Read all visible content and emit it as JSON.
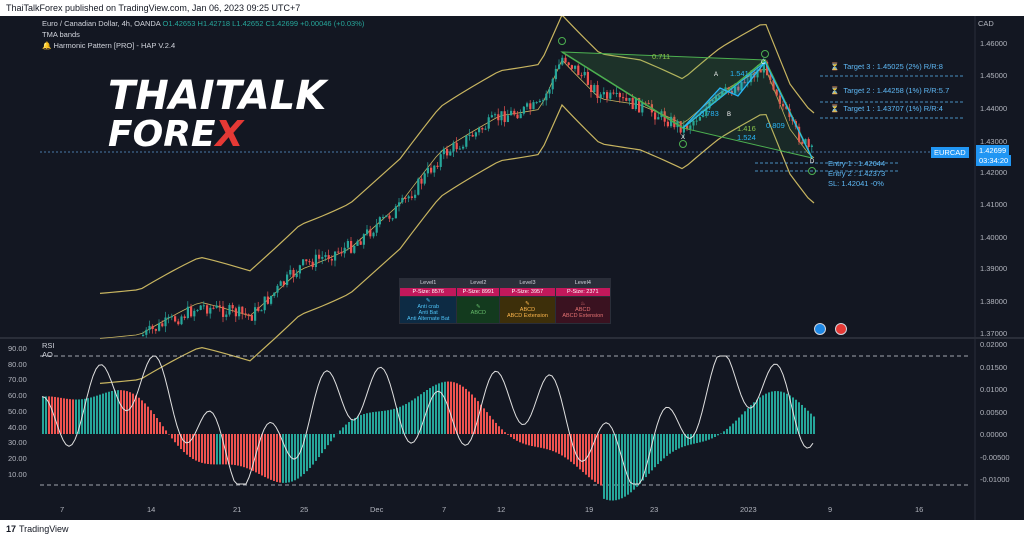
{
  "publish_line": "ThaiTalkForex published on TradingView.com, Jan 06, 2023 09:25 UTC+7",
  "legend": {
    "symbol": "Euro / Canadian Dollar, 4h, OANDA",
    "ohlc": "O1.42653 H1.42718 L1.42652 C1.42699 +0.00046 (+0.03%)",
    "indicator1": "TMA bands",
    "indicator2": "Harmonic Pattern [PRO] - HAP V.2.4"
  },
  "brand": {
    "line1": "THAITALK",
    "line2a": "FORE",
    "line2b": "X"
  },
  "currency_label": "CAD",
  "price_axis": [
    "1.46000",
    "1.45000",
    "1.44000",
    "1.43000",
    "1.42000",
    "1.41000",
    "1.40000",
    "1.39000",
    "1.38000",
    "1.37000"
  ],
  "symbol_tag": "EURCAD",
  "last_price": "1.42699",
  "countdown": "03:34:20",
  "targets": [
    {
      "label": "Target 3 : 1.45025 (2%) R/R:8"
    },
    {
      "label": "Target 2 : 1.44258 (1%) R/R:5.7"
    },
    {
      "label": "Target 1 : 1.43707 (1%) R/R:4"
    }
  ],
  "entries": [
    {
      "label": "Entry 1 : 1.42644"
    },
    {
      "label": "Entry 2 : 1.42373"
    },
    {
      "label": "SL: 1.42041 -0%"
    }
  ],
  "pattern_labels": {
    "ratio_top": "0.711",
    "ratio_mid": "1.416",
    "ratio_mid2": "1.524",
    "ratio_c": "0.809",
    "ratio_b": "1.541",
    "ratio_a": "0.783",
    "x": "X",
    "a": "A",
    "b": "B",
    "c": "C",
    "d": "D"
  },
  "level_table": {
    "headers": [
      "Level1",
      "Level2",
      "Level3",
      "Level4"
    ],
    "psize": [
      "P-Size: 8576",
      "P-Size: 8991",
      "P-Size: 3957",
      "P-Size: 2371"
    ],
    "level1_lines": [
      "Anti crab",
      "Anti Bat",
      "Anti Alternate Bat"
    ],
    "level2_lines": [
      "ABCD"
    ],
    "level3_lines": [
      "ABCD",
      "ABCD Extension"
    ],
    "level4_lines": [
      "ABCD",
      "ABCD Extension"
    ]
  },
  "rsi": {
    "title": "RSI",
    "ao_label": "AO",
    "left_axis": [
      "90.00",
      "80.00",
      "70.00",
      "60.00",
      "50.00",
      "40.00",
      "30.00",
      "20.00",
      "10.00"
    ],
    "right_axis": [
      "0.02000",
      "0.01500",
      "0.01000",
      "0.00500",
      "0.00000",
      "-0.00500",
      "-0.01000"
    ]
  },
  "time_axis": [
    "7",
    "14",
    "21",
    "25",
    "Dec",
    "7",
    "12",
    "19",
    "23",
    "2023",
    "9",
    "16"
  ],
  "footer_brand": "TradingView",
  "footer_logo": "17",
  "colors": {
    "bg": "#131722",
    "up": "#26a69a",
    "down": "#ef5350",
    "band": "#c8b560",
    "tag": "#2196f3"
  }
}
